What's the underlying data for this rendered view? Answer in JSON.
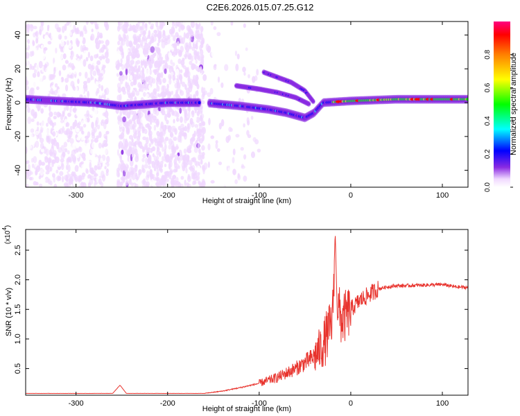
{
  "title": "C2E6.2026.015.07.25.G12",
  "chart_data": [
    {
      "type": "heatmap",
      "xlabel": "Height of straight line (km)",
      "ylabel": "Frequency (Hz)",
      "xlim": [
        -355,
        128
      ],
      "ylim": [
        -50,
        48
      ],
      "xticks": [
        -300,
        -200,
        -100,
        0,
        100
      ],
      "yticks": [
        -40,
        -20,
        0,
        20,
        40
      ],
      "colorbar": {
        "label": "Normalized spectral amplitude",
        "range": [
          0,
          1
        ],
        "ticks": [
          "0.0",
          "0.2",
          "0.4",
          "0.6",
          "0.8"
        ],
        "colors": [
          "#ffffff",
          "#f0d8ff",
          "#8a2be2",
          "#0000ff",
          "#00ffff",
          "#00ff00",
          "#ffff00",
          "#ff8000",
          "#ff0000",
          "#ff0080"
        ]
      },
      "main_trace": [
        [
          -355,
          2
        ],
        [
          -320,
          1
        ],
        [
          -280,
          0
        ],
        [
          -250,
          -2
        ],
        [
          -200,
          0
        ],
        [
          -160,
          0
        ],
        [
          -120,
          -2
        ],
        [
          -90,
          -4
        ],
        [
          -70,
          -6
        ],
        [
          -50,
          -9
        ],
        [
          -40,
          -6
        ],
        [
          -30,
          0
        ],
        [
          0,
          1
        ],
        [
          50,
          2
        ],
        [
          128,
          2
        ]
      ],
      "branch_traces": [
        [
          [
            -125,
            10
          ],
          [
            -100,
            8
          ],
          [
            -80,
            6
          ],
          [
            -60,
            3
          ],
          [
            -45,
            -1
          ]
        ],
        [
          [
            -95,
            18
          ],
          [
            -80,
            15
          ],
          [
            -65,
            12
          ],
          [
            -50,
            7
          ],
          [
            -40,
            0
          ]
        ]
      ]
    },
    {
      "type": "line",
      "xlabel": "Height of straight line (km)",
      "ylabel": "SNR (10 * v/v)",
      "exponent_label": "(x10",
      "exponent_power": "4",
      "exponent_close": ")",
      "xlim": [
        -355,
        128
      ],
      "ylim": [
        0.05,
        2.85
      ],
      "xticks": [
        -300,
        -200,
        -100,
        0,
        100
      ],
      "yticks": [
        "0.5",
        "1.0",
        "1.5",
        "2.0",
        "2.5"
      ],
      "color": "#e8332d",
      "series": [
        {
          "x": [
            -355,
            -300,
            -260,
            -252,
            -245,
            -200,
            -160,
            -140,
            -120,
            -100,
            -80,
            -60,
            -40,
            -30,
            -25,
            -20,
            -17,
            -15,
            -10,
            0,
            10,
            20,
            30,
            40,
            50,
            60,
            80,
            100,
            115,
            128
          ],
          "y": [
            0.08,
            0.08,
            0.08,
            0.22,
            0.08,
            0.08,
            0.08,
            0.12,
            0.18,
            0.25,
            0.35,
            0.5,
            0.7,
            0.9,
            1.1,
            1.3,
            2.8,
            1.6,
            1.3,
            1.5,
            1.65,
            1.75,
            1.85,
            1.88,
            1.9,
            1.9,
            1.91,
            1.92,
            1.88,
            1.87
          ]
        }
      ]
    }
  ]
}
